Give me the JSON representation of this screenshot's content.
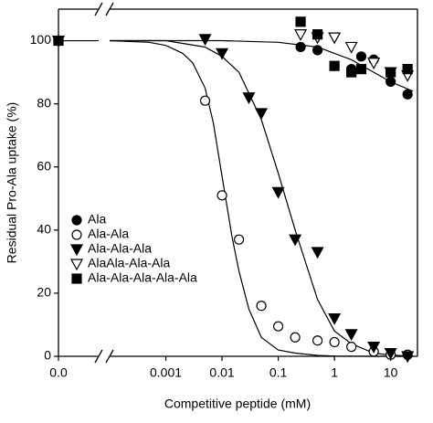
{
  "chart_data": {
    "type": "scatter",
    "xlabel": "Competitive peptide (mM)",
    "ylabel": "Residual Pro-Ala uptake (%)",
    "xscale": "log",
    "xlim": [
      0.0001,
      30
    ],
    "ylim": [
      0,
      110
    ],
    "xticks": [
      {
        "value": 0,
        "label": "0.0"
      },
      0.001,
      0.01,
      0.1,
      1,
      10
    ],
    "yticks": [
      0,
      20,
      40,
      60,
      80,
      100
    ],
    "legend": "lower left",
    "series": [
      {
        "name": "Ala",
        "color": "#000000",
        "marker": "circle",
        "filled": true,
        "x": [
          0,
          0.25,
          0.5,
          2,
          3,
          5,
          10,
          20
        ],
        "values": [
          100,
          98,
          97,
          91,
          95,
          94,
          87,
          83
        ]
      },
      {
        "name": "Ala-Ala",
        "color": "#000000",
        "marker": "circle",
        "filled": false,
        "x": [
          0,
          0.005,
          0.01,
          0.02,
          0.05,
          0.1,
          0.2,
          0.5,
          1,
          2,
          5,
          10,
          20
        ],
        "values": [
          100,
          81,
          51,
          37,
          16,
          9.5,
          6,
          5,
          4.5,
          3,
          1.5,
          0.5,
          0.5
        ]
      },
      {
        "name": "Ala-Ala-Ala",
        "color": "#000000",
        "marker": "triangle-down",
        "filled": true,
        "x": [
          0,
          0.005,
          0.01,
          0.03,
          0.05,
          0.1,
          0.2,
          0.5,
          1,
          2,
          5,
          10,
          20
        ],
        "values": [
          100,
          100.5,
          96,
          82,
          77,
          52,
          37,
          33,
          12,
          7,
          3,
          1,
          0
        ]
      },
      {
        "name": "AlaAla-Ala-Ala",
        "color": "#000000",
        "marker": "triangle-down",
        "filled": false,
        "x": [
          0,
          0.25,
          0.5,
          1,
          2,
          5,
          10,
          20
        ],
        "values": [
          100,
          102,
          101,
          101,
          98,
          93,
          90,
          89
        ]
      },
      {
        "name": "Ala-Ala-Ala-Ala-Ala",
        "color": "#000000",
        "marker": "square",
        "filled": true,
        "x": [
          0,
          0.25,
          0.5,
          1,
          2,
          3,
          10,
          20
        ],
        "values": [
          100,
          106,
          102,
          92,
          90,
          91,
          90,
          91
        ]
      }
    ],
    "fits": [
      {
        "x": [
          0.0001,
          0.0005,
          0.001,
          0.002,
          0.003,
          0.005,
          0.007,
          0.01,
          0.015,
          0.02,
          0.03,
          0.05,
          0.1,
          0.2,
          0.5,
          1,
          5,
          25
        ],
        "values": [
          100,
          99.5,
          98.5,
          96,
          93,
          85,
          74,
          57,
          38,
          27,
          15,
          6,
          2,
          1,
          0.3,
          0.1,
          0,
          0
        ]
      },
      {
        "x": [
          0.0001,
          0.001,
          0.005,
          0.01,
          0.02,
          0.05,
          0.1,
          0.2,
          0.5,
          1,
          2,
          5,
          10,
          25
        ],
        "values": [
          100,
          100,
          98,
          95,
          90,
          75,
          58,
          40,
          18,
          8,
          4,
          1,
          0.4,
          0
        ]
      },
      {
        "x": [
          0.0001,
          0.01,
          0.1,
          0.5,
          1,
          2,
          5,
          10,
          25
        ],
        "values": [
          100,
          100,
          99.5,
          98,
          96,
          94,
          90,
          87,
          84
        ]
      }
    ]
  }
}
